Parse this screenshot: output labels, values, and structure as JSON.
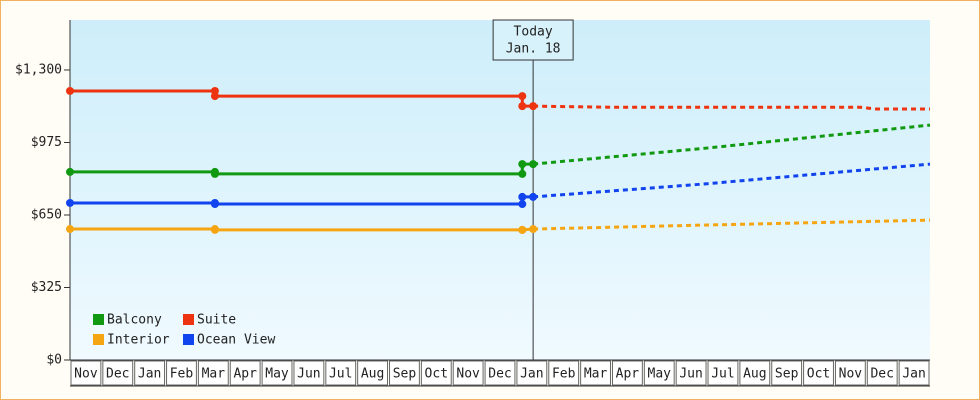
{
  "chart_data": {
    "type": "line",
    "categories": [
      "Nov",
      "Dec",
      "Jan",
      "Feb",
      "Mar",
      "Apr",
      "May",
      "Jun",
      "Jul",
      "Aug",
      "Sep",
      "Oct",
      "Nov",
      "Dec",
      "Jan",
      "Feb",
      "Mar",
      "Apr",
      "May",
      "Jun",
      "Jul",
      "Aug",
      "Sep",
      "Oct",
      "Nov",
      "Dec",
      "Jan"
    ],
    "xlim": [
      0,
      27
    ],
    "ylim": [
      0,
      1524
    ],
    "yticks": [
      {
        "value": 0,
        "label": "$0"
      },
      {
        "value": 325,
        "label": "$325"
      },
      {
        "value": 650,
        "label": "$650"
      },
      {
        "value": 975,
        "label": "$975"
      },
      {
        "value": 1300,
        "label": "$1,300"
      }
    ],
    "today": {
      "x": 14.54,
      "label": "Today",
      "date": "Jan. 18"
    },
    "legend": "bottom-left",
    "series": [
      {
        "name": "Balcony",
        "color": "#119911",
        "x": [
          0,
          4.55,
          4.55,
          14.2,
          14.2,
          14.54
        ],
        "values": [
          843,
          843,
          834,
          834,
          878,
          878
        ],
        "forecast_x": [
          14.54,
          20,
          27
        ],
        "forecast_values": [
          878,
          950,
          1053
        ]
      },
      {
        "name": "Suite",
        "color": "#ee3311",
        "x": [
          0,
          4.55,
          4.55,
          14.2,
          14.2,
          14.54
        ],
        "values": [
          1206,
          1206,
          1183,
          1183,
          1138,
          1138
        ],
        "forecast_x": [
          14.54,
          17,
          24.8,
          25.3,
          27
        ],
        "forecast_values": [
          1138,
          1133,
          1133,
          1125,
          1125
        ]
      },
      {
        "name": "Interior",
        "color": "#f5a511",
        "x": [
          0,
          4.55,
          4.55,
          14.2,
          14.2,
          14.54
        ],
        "values": [
          587,
          587,
          583,
          583,
          583,
          587
        ],
        "forecast_x": [
          14.54,
          20,
          27
        ],
        "forecast_values": [
          587,
          605,
          627
        ]
      },
      {
        "name": "Ocean View",
        "color": "#1144ee",
        "x": [
          0,
          4.55,
          4.55,
          14.2,
          14.2,
          14.54
        ],
        "values": [
          704,
          704,
          699,
          699,
          731,
          731
        ],
        "forecast_x": [
          14.54,
          20,
          27
        ],
        "forecast_values": [
          731,
          790,
          878
        ]
      }
    ]
  }
}
